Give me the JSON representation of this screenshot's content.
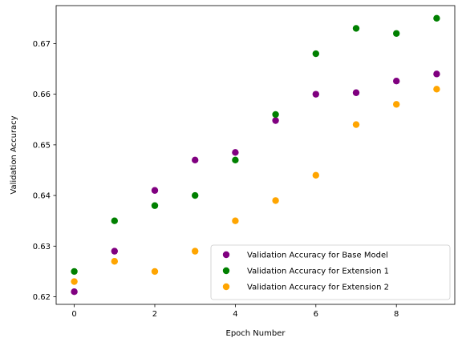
{
  "chart_data": {
    "type": "scatter",
    "title": "",
    "xlabel": "Epoch Number",
    "ylabel": "Validation Accuracy",
    "xlim": [
      -0.45,
      9.45
    ],
    "ylim": [
      0.6185,
      0.6775
    ],
    "xticks": [
      0,
      2,
      4,
      6,
      8
    ],
    "yticks": [
      0.62,
      0.63,
      0.64,
      0.65,
      0.66,
      0.67
    ],
    "xtick_labels": [
      "0",
      "2",
      "4",
      "6",
      "8"
    ],
    "ytick_labels": [
      "0.62",
      "0.63",
      "0.64",
      "0.65",
      "0.66",
      "0.67"
    ],
    "grid": false,
    "legend_position": "lower-right",
    "x": [
      0,
      1,
      2,
      3,
      4,
      5,
      6,
      7,
      8,
      9
    ],
    "series": [
      {
        "name": "Validation Accuracy for Base Model",
        "color": "#800080",
        "values": [
          0.621,
          0.629,
          0.641,
          0.647,
          0.6485,
          0.6548,
          0.66,
          0.6603,
          0.6626,
          0.664
        ]
      },
      {
        "name": "Validation Accuracy for Extension 1",
        "color": "#008000",
        "values": [
          0.625,
          0.635,
          0.638,
          0.64,
          0.647,
          0.656,
          0.668,
          0.673,
          0.672,
          0.675
        ]
      },
      {
        "name": "Validation Accuracy for Extension 2",
        "color": "#FFA500",
        "values": [
          0.623,
          0.627,
          0.625,
          0.629,
          0.635,
          0.639,
          0.644,
          0.654,
          0.658,
          0.661
        ]
      }
    ]
  }
}
